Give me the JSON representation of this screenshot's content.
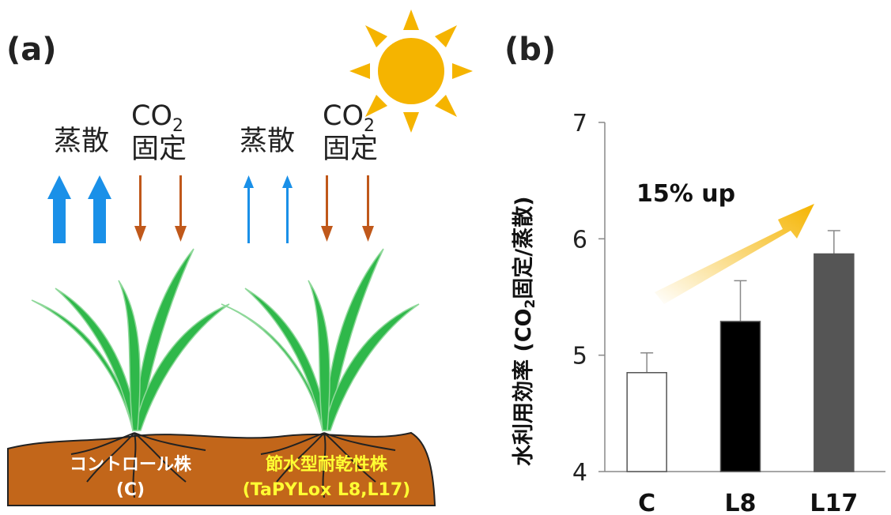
{
  "panel_a": {
    "label": "(a)",
    "left_plant": {
      "transpiration": "蒸散",
      "co2_prefix": "CO",
      "co2_sub": "2",
      "fixation": "固定",
      "soil_line1": "コントロール株",
      "soil_line2": "(C)"
    },
    "right_plant": {
      "transpiration": "蒸散",
      "co2_prefix": "CO",
      "co2_sub": "2",
      "fixation": "固定",
      "soil_line1": "節水型耐乾性株",
      "soil_line2": "(TaPYLox L8,L17)"
    },
    "colors": {
      "transpiration_arrow": "#1a90e8",
      "fixation_arrow": "#c0581a",
      "soil": "#c2661a",
      "leaf": "#2fb84a",
      "sun": "#f5b400",
      "control_text": "#ffffff",
      "tolerant_text": "#ffff33"
    }
  },
  "panel_b": {
    "label": "(b)",
    "ylabel_prefix": "水利用効率 (CO",
    "ylabel_sub": "2",
    "ylabel_suffix": "固定/蒸散)",
    "annotation": "15% up"
  },
  "chart_data": {
    "type": "bar",
    "categories": [
      "C",
      "L8",
      "L17"
    ],
    "values": [
      4.85,
      5.29,
      5.87
    ],
    "errors": [
      0.17,
      0.35,
      0.2
    ],
    "bar_colors": [
      "#ffffff",
      "#000000",
      "#555555"
    ],
    "ylim": [
      4,
      7
    ],
    "yticks": [
      4,
      5,
      6,
      7
    ],
    "xlabel": "",
    "ylabel": "水利用効率 (CO2固定/蒸散)",
    "annotation": "15% up"
  }
}
